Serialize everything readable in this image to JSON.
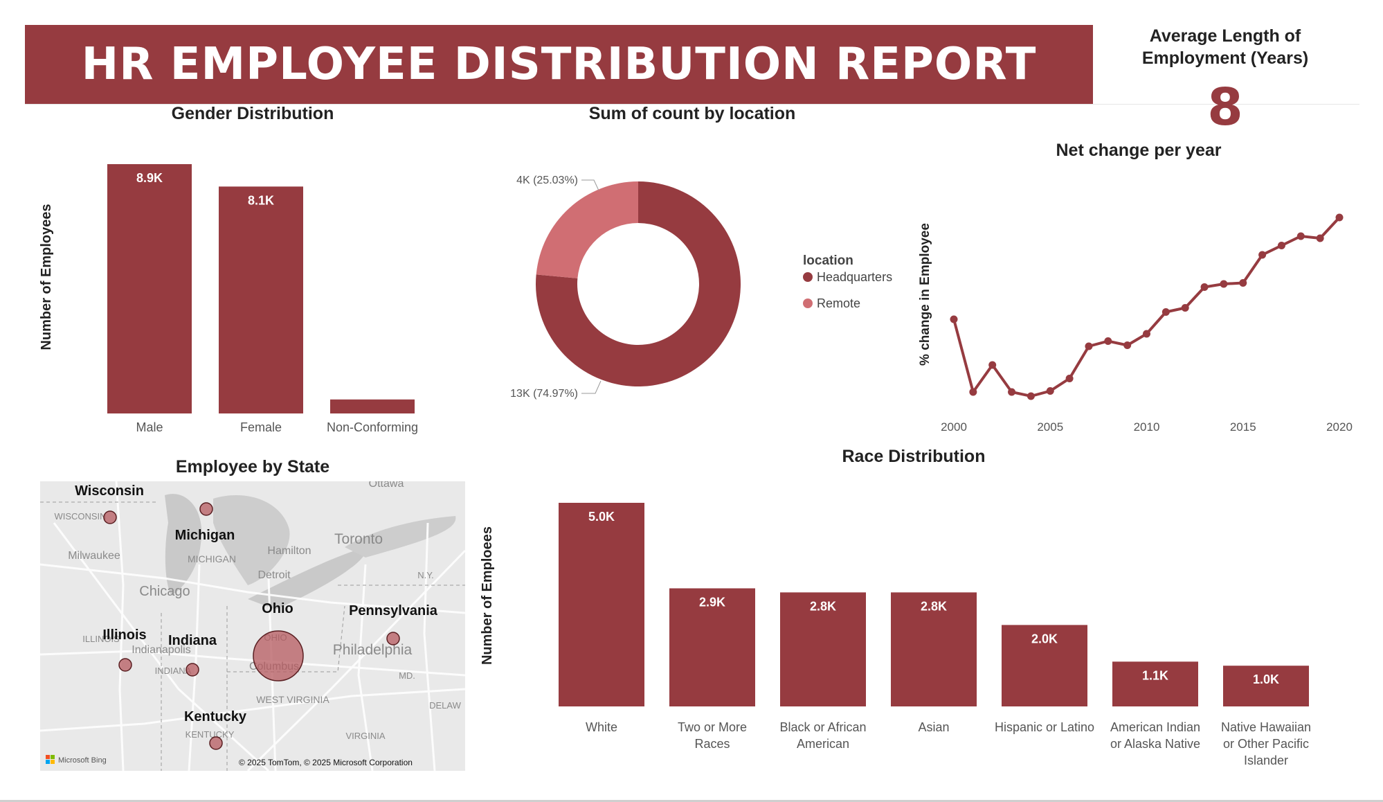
{
  "report_title": "HR EMPLOYEE DISTRIBUTION REPORT",
  "kpi": {
    "label": "Average Length of Employment (Years)",
    "value": "8"
  },
  "colors": {
    "primary": "#963b40",
    "secondary": "#d06e73",
    "map_bubble": "#b55a5f"
  },
  "gender_chart": {
    "title": "Gender Distribution",
    "ylabel": "Number of Employees",
    "chart_data": {
      "type": "bar",
      "categories": [
        "Male",
        "Female",
        "Non-Conforming"
      ],
      "values": [
        8900,
        8100,
        500
      ],
      "data_labels": [
        "8.9K",
        "8.1K",
        ""
      ]
    }
  },
  "location_chart": {
    "title": "Sum of count by location",
    "legend_title": "location",
    "chart_data": {
      "type": "pie",
      "labels": [
        "Headquarters",
        "Remote"
      ],
      "values": [
        13000,
        4000
      ],
      "percentages": [
        74.97,
        25.03
      ],
      "data_labels": [
        "13K (74.97%)",
        "4K (25.03%)"
      ]
    }
  },
  "net_change_chart": {
    "title": "Net change per year",
    "ylabel": "% change in Employee",
    "chart_data": {
      "type": "line",
      "x": [
        2000,
        2001,
        2002,
        2003,
        2004,
        2005,
        2006,
        2007,
        2008,
        2009,
        2010,
        2011,
        2012,
        2013,
        2014,
        2015,
        2016,
        2017,
        2018,
        2019,
        2020
      ],
      "y": [
        0.73,
        0.03,
        0.29,
        0.03,
        -0.01,
        0.04,
        0.16,
        0.47,
        0.52,
        0.48,
        0.59,
        0.8,
        0.84,
        1.04,
        1.07,
        1.08,
        1.35,
        1.44,
        1.53,
        1.51,
        1.71
      ],
      "x_ticks": [
        "2000",
        "2005",
        "2010",
        "2015",
        "2020"
      ]
    }
  },
  "state_map": {
    "title": "Employee by State",
    "states": [
      {
        "name": "Wisconsin",
        "count": 1
      },
      {
        "name": "Michigan",
        "count": 1
      },
      {
        "name": "Ohio",
        "count": 14
      },
      {
        "name": "Pennsylvania",
        "count": 1
      },
      {
        "name": "Illinois",
        "count": 1
      },
      {
        "name": "Indiana",
        "count": 1
      },
      {
        "name": "Kentucky",
        "count": 1
      }
    ],
    "base_labels": [
      "WISCONSIN",
      "Milwaukee",
      "MICHIGAN",
      "Hamilton",
      "Toronto",
      "Chicago",
      "Detroit",
      "N.Y.",
      "ILLINOIS",
      "Indianapolis",
      "OHIO",
      "Philadelphia",
      "INDIANA",
      "Columbus",
      "MD.",
      "WEST VIRGINIA",
      "DELAW",
      "KENTUCKY",
      "VIRGINIA",
      "Ottawa"
    ],
    "attribution": "© 2025 TomTom, © 2025 Microsoft Corporation",
    "brand": "Microsoft Bing"
  },
  "race_chart": {
    "title": "Race Distribution",
    "ylabel": "Number of Emploees",
    "chart_data": {
      "type": "bar",
      "categories": [
        "White",
        "Two or More Races",
        "Black or African American",
        "Asian",
        "Hispanic or Latino",
        "American Indian or Alaska Native",
        "Native Hawaiian or Other Pacific Islander"
      ],
      "category_lines": [
        [
          "White"
        ],
        [
          "Two or More",
          "Races"
        ],
        [
          "Black or African",
          "American"
        ],
        [
          "Asian"
        ],
        [
          "Hispanic or Latino"
        ],
        [
          "American Indian",
          "or Alaska Native"
        ],
        [
          "Native Hawaiian",
          "or Other Pacific",
          "Islander"
        ]
      ],
      "values": [
        5000,
        2900,
        2800,
        2800,
        2000,
        1100,
        1000
      ],
      "data_labels": [
        "5.0K",
        "2.9K",
        "2.8K",
        "2.8K",
        "2.0K",
        "1.1K",
        "1.0K"
      ]
    }
  }
}
